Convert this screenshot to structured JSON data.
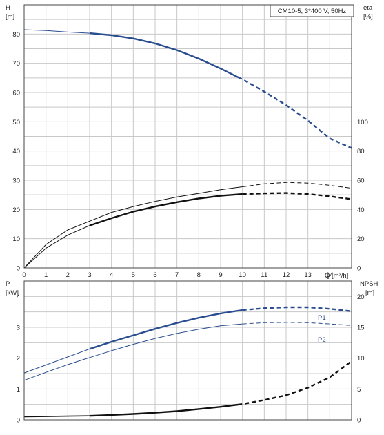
{
  "chart_data": [
    {
      "type": "line",
      "legend_box": "CM10-5, 3*400 V, 50Hz",
      "left_axis": {
        "label": "H",
        "unit": "[m]",
        "ticks": [
          "0",
          "10",
          "20",
          "30",
          "40",
          "50",
          "60",
          "70",
          "80"
        ],
        "range": [
          0,
          90
        ]
      },
      "right_axis": {
        "label": "eta",
        "unit": "[%]",
        "ticks": [
          "0",
          "20",
          "40",
          "60",
          "80",
          "100"
        ],
        "range": [
          0,
          180
        ]
      },
      "x_axis": {
        "label": "Q [m³/h]",
        "ticks": [
          "0",
          "1",
          "2",
          "3",
          "4",
          "5",
          "6",
          "7",
          "8",
          "9",
          "10",
          "11",
          "12",
          "13",
          "14"
        ],
        "range": [
          0,
          15
        ]
      },
      "grid": true,
      "series": [
        {
          "key": "H",
          "axis": "left",
          "color": "#2a4d8f",
          "points": [
            [
              0,
              81.5
            ],
            [
              1,
              81.2
            ],
            [
              2,
              80.7
            ],
            [
              3,
              80.3
            ],
            [
              4,
              79.6
            ],
            [
              5,
              78.5
            ],
            [
              6,
              76.8
            ],
            [
              7,
              74.5
            ],
            [
              8,
              71.6
            ],
            [
              9,
              68.2
            ],
            [
              10,
              64.5
            ],
            [
              11,
              60.3
            ],
            [
              12,
              55.7
            ],
            [
              13,
              50.4
            ],
            [
              14,
              44.3
            ],
            [
              15,
              41
            ]
          ],
          "solid_to": 9.8
        },
        {
          "key": "eta_thin",
          "axis": "right",
          "color": "#111111",
          "points": [
            [
              0,
              0
            ],
            [
              1,
              16
            ],
            [
              2,
              26
            ],
            [
              3,
              32
            ],
            [
              4,
              38
            ],
            [
              5,
              42
            ],
            [
              6,
              45.5
            ],
            [
              7,
              48.5
            ],
            [
              8,
              51
            ],
            [
              9,
              53.5
            ],
            [
              10,
              55.5
            ],
            [
              11,
              57.5
            ],
            [
              12,
              58.5
            ],
            [
              13,
              58
            ],
            [
              14,
              56.5
            ],
            [
              15,
              54.5
            ]
          ],
          "solid_to": 10
        },
        {
          "key": "eta_thick",
          "axis": "right",
          "color": "#111111",
          "points": [
            [
              0,
              0
            ],
            [
              1,
              13.5
            ],
            [
              2,
              22.5
            ],
            [
              3,
              29
            ],
            [
              4,
              34
            ],
            [
              5,
              38.5
            ],
            [
              6,
              42
            ],
            [
              7,
              45
            ],
            [
              8,
              47.5
            ],
            [
              9,
              49.3
            ],
            [
              10,
              50.5
            ],
            [
              11,
              51
            ],
            [
              12,
              51.2
            ],
            [
              13,
              50.5
            ],
            [
              14,
              49
            ],
            [
              15,
              47
            ]
          ],
          "solid_to": 10
        }
      ]
    },
    {
      "type": "line",
      "left_axis": {
        "label": "P",
        "unit": "[kW]",
        "ticks": [
          "0",
          "1",
          "2",
          "3",
          "4"
        ],
        "range": [
          0,
          4.5
        ]
      },
      "right_axis": {
        "label": "NPSH",
        "unit": "[m]",
        "ticks": [
          "0",
          "5",
          "10",
          "15",
          "20"
        ],
        "range": [
          0,
          22.5
        ]
      },
      "x_axis": {
        "ticks": [],
        "range": [
          0,
          15
        ]
      },
      "grid": true,
      "series": [
        {
          "key": "P1",
          "name": "P1",
          "axis": "left",
          "color": "#2a4d8f",
          "points": [
            [
              0,
              1.52
            ],
            [
              1,
              1.78
            ],
            [
              2,
              2.04
            ],
            [
              3,
              2.3
            ],
            [
              4,
              2.53
            ],
            [
              5,
              2.74
            ],
            [
              6,
              2.95
            ],
            [
              7,
              3.14
            ],
            [
              8,
              3.31
            ],
            [
              9,
              3.45
            ],
            [
              10,
              3.56
            ],
            [
              11,
              3.62
            ],
            [
              12,
              3.65
            ],
            [
              13,
              3.65
            ],
            [
              14,
              3.6
            ],
            [
              15,
              3.52
            ]
          ],
          "solid_to": 10
        },
        {
          "key": "P2",
          "name": "P2",
          "axis": "left",
          "color": "#2a4d8f",
          "points": [
            [
              0,
              1.28
            ],
            [
              1,
              1.54
            ],
            [
              2,
              1.79
            ],
            [
              3,
              2.02
            ],
            [
              4,
              2.24
            ],
            [
              5,
              2.45
            ],
            [
              6,
              2.64
            ],
            [
              7,
              2.8
            ],
            [
              8,
              2.94
            ],
            [
              9,
              3.05
            ],
            [
              10,
              3.11
            ],
            [
              11,
              3.15
            ],
            [
              12,
              3.16
            ],
            [
              13,
              3.15
            ],
            [
              14,
              3.11
            ],
            [
              15,
              3.06
            ]
          ],
          "solid_to": 10
        },
        {
          "key": "NPSH",
          "axis": "right",
          "color": "#111111",
          "points": [
            [
              0,
              0.5
            ],
            [
              1,
              0.55
            ],
            [
              2,
              0.6
            ],
            [
              3,
              0.65
            ],
            [
              4,
              0.8
            ],
            [
              5,
              0.95
            ],
            [
              6,
              1.15
            ],
            [
              7,
              1.4
            ],
            [
              8,
              1.75
            ],
            [
              9,
              2.1
            ],
            [
              10,
              2.55
            ],
            [
              11,
              3.2
            ],
            [
              12,
              4.0
            ],
            [
              13,
              5.2
            ],
            [
              14,
              6.9
            ],
            [
              15,
              9.5
            ]
          ],
          "solid_to": 9.8
        }
      ]
    }
  ]
}
